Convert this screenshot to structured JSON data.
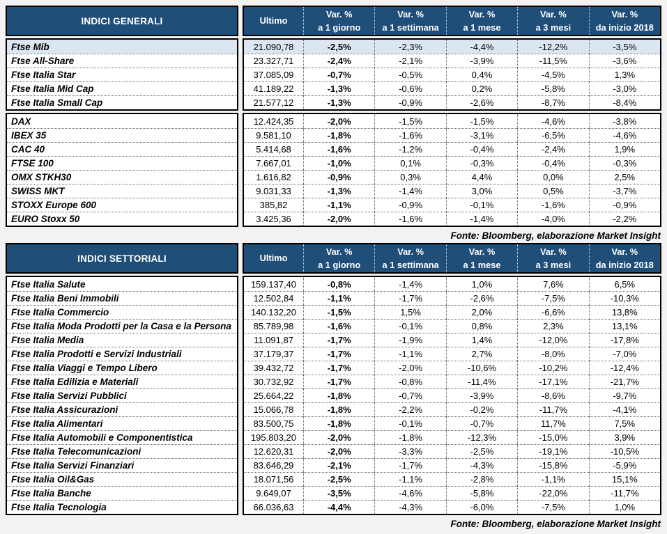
{
  "colors": {
    "header_bg": "#1f4e79",
    "header_fg": "#ffffff",
    "highlight_row": "#dce6f1",
    "page_bg": "#f2f2f2"
  },
  "columns": [
    "Ultimo",
    "Var. %\na 1 giorno",
    "Var. %\na 1 settimana",
    "Var. %\na 1 mese",
    "Var. %\na 3 mesi",
    "Var. %\nda inizio 2018"
  ],
  "tables": [
    {
      "title": "INDICI GENERALI",
      "source": "Fonte: Bloomberg, elaborazione Market Insight",
      "groups": [
        {
          "rows": [
            {
              "name": "Ftse Mib",
              "highlight": true,
              "values": [
                "21.090,78",
                "-2,5%",
                "-2,3%",
                "-4,4%",
                "-12,2%",
                "-3,5%"
              ]
            },
            {
              "name": "Ftse All-Share",
              "values": [
                "23.327,71",
                "-2,4%",
                "-2,1%",
                "-3,9%",
                "-11,5%",
                "-3,6%"
              ]
            },
            {
              "name": "Ftse Italia Star",
              "values": [
                "37.085,09",
                "-0,7%",
                "-0,5%",
                "0,4%",
                "-4,5%",
                "1,3%"
              ]
            },
            {
              "name": "Ftse Italia Mid Cap",
              "values": [
                "41.189,22",
                "-1,3%",
                "-0,6%",
                "0,2%",
                "-5,8%",
                "-3,0%"
              ]
            },
            {
              "name": "Ftse Italia Small Cap",
              "values": [
                "21.577,12",
                "-1,3%",
                "-0,9%",
                "-2,6%",
                "-8,7%",
                "-8,4%"
              ]
            }
          ]
        },
        {
          "rows": [
            {
              "name": "DAX",
              "values": [
                "12.424,35",
                "-2,0%",
                "-1,5%",
                "-1,5%",
                "-4,6%",
                "-3,8%"
              ]
            },
            {
              "name": "IBEX 35",
              "values": [
                "9.581,10",
                "-1,8%",
                "-1,6%",
                "-3,1%",
                "-6,5%",
                "-4,6%"
              ]
            },
            {
              "name": "CAC 40",
              "values": [
                "5.414,68",
                "-1,6%",
                "-1,2%",
                "-0,4%",
                "-2,4%",
                "1,9%"
              ]
            },
            {
              "name": "FTSE 100",
              "values": [
                "7.667,01",
                "-1,0%",
                "0,1%",
                "-0,3%",
                "-0,4%",
                "-0,3%"
              ]
            },
            {
              "name": "OMX STKH30",
              "values": [
                "1.616,82",
                "-0,9%",
                "0,3%",
                "4,4%",
                "0,0%",
                "2,5%"
              ]
            },
            {
              "name": "SWISS MKT",
              "values": [
                "9.031,33",
                "-1,3%",
                "-1,4%",
                "3,0%",
                "0,5%",
                "-3,7%"
              ]
            },
            {
              "name": "STOXX Europe 600",
              "values": [
                "385,82",
                "-1,1%",
                "-0,9%",
                "-0,1%",
                "-1,6%",
                "-0,9%"
              ]
            },
            {
              "name": "EURO Stoxx 50",
              "values": [
                "3.425,36",
                "-2,0%",
                "-1,6%",
                "-1,4%",
                "-4,0%",
                "-2,2%"
              ]
            }
          ]
        }
      ]
    },
    {
      "title": "INDICI SETTORIALI",
      "source": "Fonte: Bloomberg, elaborazione Market Insight",
      "groups": [
        {
          "rows": [
            {
              "name": "Ftse Italia Salute",
              "values": [
                "159.137,40",
                "-0,8%",
                "-1,4%",
                "1,0%",
                "7,6%",
                "6,5%"
              ]
            },
            {
              "name": "Ftse Italia Beni Immobili",
              "values": [
                "12.502,84",
                "-1,1%",
                "-1,7%",
                "-2,6%",
                "-7,5%",
                "-10,3%"
              ]
            },
            {
              "name": "Ftse Italia Commercio",
              "values": [
                "140.132,20",
                "-1,5%",
                "1,5%",
                "2,0%",
                "-6,6%",
                "13,8%"
              ]
            },
            {
              "name": "Ftse Italia Moda Prodotti per la Casa e la Persona",
              "values": [
                "85.789,98",
                "-1,6%",
                "-0,1%",
                "0,8%",
                "2,3%",
                "13,1%"
              ]
            },
            {
              "name": "Ftse Italia Media",
              "values": [
                "11.091,87",
                "-1,7%",
                "-1,9%",
                "1,4%",
                "-12,0%",
                "-17,8%"
              ]
            },
            {
              "name": "Ftse Italia Prodotti e Servizi Industriali",
              "values": [
                "37.179,37",
                "-1,7%",
                "-1,1%",
                "2,7%",
                "-8,0%",
                "-7,0%"
              ]
            },
            {
              "name": "Ftse Italia Viaggi e Tempo Libero",
              "values": [
                "39.432,72",
                "-1,7%",
                "-2,0%",
                "-10,6%",
                "-10,2%",
                "-12,4%"
              ]
            },
            {
              "name": "Ftse Italia Edilizia e Materiali",
              "values": [
                "30.732,92",
                "-1,7%",
                "-0,8%",
                "-11,4%",
                "-17,1%",
                "-21,7%"
              ]
            },
            {
              "name": "Ftse Italia Servizi Pubblici",
              "values": [
                "25.664,22",
                "-1,8%",
                "-0,7%",
                "-3,9%",
                "-8,6%",
                "-9,7%"
              ]
            },
            {
              "name": "Ftse Italia Assicurazioni",
              "values": [
                "15.066,78",
                "-1,8%",
                "-2,2%",
                "-0,2%",
                "-11,7%",
                "-4,1%"
              ]
            },
            {
              "name": "Ftse Italia Alimentari",
              "values": [
                "83.500,75",
                "-1,8%",
                "-0,1%",
                "-0,7%",
                "11,7%",
                "7,5%"
              ]
            },
            {
              "name": "Ftse Italia Automobili e Componentistica",
              "values": [
                "195.803,20",
                "-2,0%",
                "-1,8%",
                "-12,3%",
                "-15,0%",
                "3,9%"
              ]
            },
            {
              "name": "Ftse Italia Telecomunicazioni",
              "values": [
                "12.620,31",
                "-2,0%",
                "-3,3%",
                "-2,5%",
                "-19,1%",
                "-10,5%"
              ]
            },
            {
              "name": "Ftse Italia Servizi Finanziari",
              "values": [
                "83.646,29",
                "-2,1%",
                "-1,7%",
                "-4,3%",
                "-15,8%",
                "-5,9%"
              ]
            },
            {
              "name": "Ftse Italia Oil&Gas",
              "values": [
                "18.071,56",
                "-2,5%",
                "-1,1%",
                "-2,8%",
                "-1,1%",
                "15,1%"
              ]
            },
            {
              "name": "Ftse Italia Banche",
              "values": [
                "9.649,07",
                "-3,5%",
                "-4,6%",
                "-5,8%",
                "-22,0%",
                "-11,7%"
              ]
            },
            {
              "name": "Ftse Italia Tecnologia",
              "values": [
                "66.036,63",
                "-4,4%",
                "-4,3%",
                "-6,0%",
                "-7,5%",
                "1,0%"
              ]
            }
          ]
        }
      ]
    }
  ]
}
